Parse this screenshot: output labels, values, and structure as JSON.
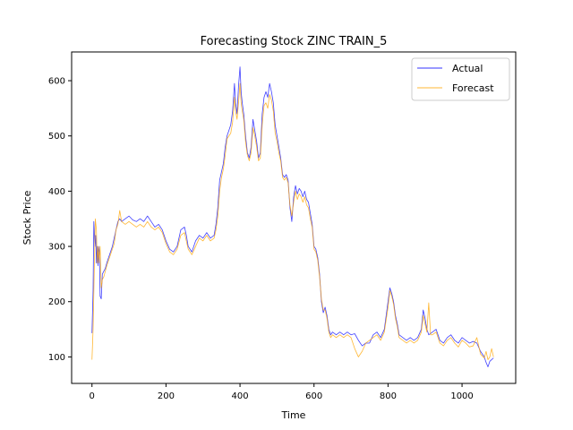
{
  "chart_data": {
    "type": "line",
    "title": "Forecasting Stock ZINC TRAIN_5",
    "xlabel": "Time",
    "ylabel": "Stock Price",
    "xlim": [
      -55,
      1145
    ],
    "ylim": [
      52,
      652
    ],
    "xticks": [
      0,
      200,
      400,
      600,
      800,
      1000
    ],
    "yticks": [
      100,
      200,
      300,
      400,
      500,
      600
    ],
    "grid": false,
    "legend_position": "top-right",
    "series": [
      {
        "name": "Actual",
        "color": "#0000ff",
        "points": [
          [
            0,
            143
          ],
          [
            3,
            220
          ],
          [
            5,
            345
          ],
          [
            8,
            300
          ],
          [
            10,
            320
          ],
          [
            12,
            270
          ],
          [
            14,
            300
          ],
          [
            16,
            265
          ],
          [
            18,
            300
          ],
          [
            20,
            290
          ],
          [
            22,
            210
          ],
          [
            25,
            205
          ],
          [
            28,
            250
          ],
          [
            32,
            255
          ],
          [
            36,
            260
          ],
          [
            40,
            270
          ],
          [
            45,
            280
          ],
          [
            50,
            290
          ],
          [
            55,
            300
          ],
          [
            60,
            315
          ],
          [
            65,
            330
          ],
          [
            70,
            345
          ],
          [
            75,
            350
          ],
          [
            80,
            345
          ],
          [
            90,
            350
          ],
          [
            100,
            355
          ],
          [
            110,
            348
          ],
          [
            120,
            345
          ],
          [
            130,
            350
          ],
          [
            140,
            345
          ],
          [
            150,
            355
          ],
          [
            160,
            345
          ],
          [
            170,
            335
          ],
          [
            180,
            340
          ],
          [
            190,
            330
          ],
          [
            200,
            310
          ],
          [
            210,
            295
          ],
          [
            220,
            290
          ],
          [
            230,
            300
          ],
          [
            240,
            330
          ],
          [
            250,
            335
          ],
          [
            255,
            320
          ],
          [
            260,
            300
          ],
          [
            270,
            290
          ],
          [
            280,
            310
          ],
          [
            290,
            320
          ],
          [
            300,
            315
          ],
          [
            310,
            325
          ],
          [
            320,
            315
          ],
          [
            330,
            320
          ],
          [
            335,
            340
          ],
          [
            340,
            370
          ],
          [
            345,
            420
          ],
          [
            350,
            435
          ],
          [
            355,
            450
          ],
          [
            360,
            480
          ],
          [
            365,
            500
          ],
          [
            370,
            510
          ],
          [
            375,
            520
          ],
          [
            380,
            545
          ],
          [
            385,
            595
          ],
          [
            388,
            560
          ],
          [
            392,
            540
          ],
          [
            396,
            590
          ],
          [
            400,
            625
          ],
          [
            403,
            580
          ],
          [
            406,
            560
          ],
          [
            410,
            540
          ],
          [
            415,
            500
          ],
          [
            420,
            470
          ],
          [
            425,
            460
          ],
          [
            430,
            480
          ],
          [
            435,
            530
          ],
          [
            440,
            510
          ],
          [
            445,
            490
          ],
          [
            450,
            460
          ],
          [
            455,
            470
          ],
          [
            460,
            540
          ],
          [
            465,
            570
          ],
          [
            470,
            580
          ],
          [
            475,
            570
          ],
          [
            480,
            595
          ],
          [
            485,
            580
          ],
          [
            490,
            560
          ],
          [
            495,
            520
          ],
          [
            500,
            500
          ],
          [
            505,
            480
          ],
          [
            510,
            460
          ],
          [
            515,
            430
          ],
          [
            520,
            425
          ],
          [
            525,
            430
          ],
          [
            530,
            420
          ],
          [
            535,
            370
          ],
          [
            540,
            345
          ],
          [
            545,
            390
          ],
          [
            550,
            410
          ],
          [
            555,
            395
          ],
          [
            560,
            405
          ],
          [
            565,
            400
          ],
          [
            570,
            390
          ],
          [
            575,
            400
          ],
          [
            580,
            385
          ],
          [
            585,
            380
          ],
          [
            590,
            360
          ],
          [
            595,
            340
          ],
          [
            600,
            300
          ],
          [
            605,
            295
          ],
          [
            610,
            280
          ],
          [
            615,
            250
          ],
          [
            620,
            200
          ],
          [
            625,
            180
          ],
          [
            630,
            190
          ],
          [
            635,
            175
          ],
          [
            640,
            150
          ],
          [
            645,
            140
          ],
          [
            650,
            145
          ],
          [
            660,
            140
          ],
          [
            670,
            145
          ],
          [
            680,
            140
          ],
          [
            690,
            145
          ],
          [
            700,
            140
          ],
          [
            710,
            142
          ],
          [
            720,
            130
          ],
          [
            730,
            120
          ],
          [
            740,
            125
          ],
          [
            750,
            125
          ],
          [
            760,
            140
          ],
          [
            770,
            145
          ],
          [
            780,
            135
          ],
          [
            790,
            150
          ],
          [
            800,
            200
          ],
          [
            805,
            225
          ],
          [
            810,
            215
          ],
          [
            815,
            200
          ],
          [
            820,
            175
          ],
          [
            825,
            160
          ],
          [
            830,
            140
          ],
          [
            840,
            135
          ],
          [
            850,
            130
          ],
          [
            860,
            135
          ],
          [
            870,
            130
          ],
          [
            880,
            135
          ],
          [
            890,
            150
          ],
          [
            895,
            185
          ],
          [
            900,
            170
          ],
          [
            905,
            150
          ],
          [
            910,
            140
          ],
          [
            920,
            145
          ],
          [
            930,
            150
          ],
          [
            940,
            130
          ],
          [
            950,
            125
          ],
          [
            960,
            135
          ],
          [
            970,
            140
          ],
          [
            980,
            130
          ],
          [
            990,
            125
          ],
          [
            1000,
            135
          ],
          [
            1010,
            130
          ],
          [
            1020,
            125
          ],
          [
            1030,
            128
          ],
          [
            1040,
            125
          ],
          [
            1050,
            110
          ],
          [
            1060,
            100
          ],
          [
            1065,
            90
          ],
          [
            1070,
            82
          ],
          [
            1075,
            92
          ],
          [
            1080,
            95
          ],
          [
            1085,
            98
          ]
        ]
      },
      {
        "name": "Forecast",
        "color": "#ffa500",
        "points": [
          [
            0,
            95
          ],
          [
            3,
            150
          ],
          [
            6,
            250
          ],
          [
            9,
            350
          ],
          [
            12,
            330
          ],
          [
            14,
            270
          ],
          [
            17,
            300
          ],
          [
            19,
            270
          ],
          [
            22,
            300
          ],
          [
            25,
            225
          ],
          [
            28,
            240
          ],
          [
            32,
            245
          ],
          [
            36,
            255
          ],
          [
            40,
            265
          ],
          [
            45,
            275
          ],
          [
            50,
            285
          ],
          [
            55,
            295
          ],
          [
            60,
            305
          ],
          [
            65,
            330
          ],
          [
            70,
            340
          ],
          [
            75,
            365
          ],
          [
            80,
            345
          ],
          [
            90,
            340
          ],
          [
            100,
            345
          ],
          [
            110,
            340
          ],
          [
            120,
            335
          ],
          [
            130,
            340
          ],
          [
            140,
            335
          ],
          [
            150,
            345
          ],
          [
            160,
            335
          ],
          [
            170,
            330
          ],
          [
            180,
            335
          ],
          [
            190,
            325
          ],
          [
            200,
            305
          ],
          [
            210,
            290
          ],
          [
            220,
            285
          ],
          [
            230,
            295
          ],
          [
            240,
            320
          ],
          [
            250,
            325
          ],
          [
            255,
            310
          ],
          [
            260,
            295
          ],
          [
            270,
            285
          ],
          [
            280,
            300
          ],
          [
            290,
            315
          ],
          [
            300,
            310
          ],
          [
            310,
            320
          ],
          [
            320,
            310
          ],
          [
            330,
            315
          ],
          [
            335,
            330
          ],
          [
            340,
            355
          ],
          [
            345,
            400
          ],
          [
            350,
            425
          ],
          [
            355,
            440
          ],
          [
            360,
            465
          ],
          [
            365,
            495
          ],
          [
            370,
            500
          ],
          [
            375,
            505
          ],
          [
            380,
            525
          ],
          [
            385,
            570
          ],
          [
            388,
            545
          ],
          [
            392,
            530
          ],
          [
            396,
            560
          ],
          [
            400,
            595
          ],
          [
            403,
            560
          ],
          [
            406,
            545
          ],
          [
            410,
            530
          ],
          [
            415,
            490
          ],
          [
            420,
            465
          ],
          [
            425,
            455
          ],
          [
            430,
            470
          ],
          [
            435,
            515
          ],
          [
            440,
            500
          ],
          [
            445,
            480
          ],
          [
            450,
            455
          ],
          [
            455,
            460
          ],
          [
            460,
            520
          ],
          [
            465,
            555
          ],
          [
            470,
            560
          ],
          [
            475,
            550
          ],
          [
            480,
            575
          ],
          [
            485,
            565
          ],
          [
            490,
            545
          ],
          [
            495,
            505
          ],
          [
            500,
            490
          ],
          [
            505,
            470
          ],
          [
            510,
            455
          ],
          [
            515,
            425
          ],
          [
            520,
            420
          ],
          [
            525,
            425
          ],
          [
            530,
            415
          ],
          [
            535,
            375
          ],
          [
            540,
            355
          ],
          [
            545,
            380
          ],
          [
            550,
            400
          ],
          [
            555,
            385
          ],
          [
            560,
            395
          ],
          [
            565,
            390
          ],
          [
            570,
            380
          ],
          [
            575,
            390
          ],
          [
            580,
            375
          ],
          [
            585,
            370
          ],
          [
            590,
            350
          ],
          [
            595,
            335
          ],
          [
            600,
            295
          ],
          [
            605,
            290
          ],
          [
            610,
            275
          ],
          [
            615,
            245
          ],
          [
            620,
            205
          ],
          [
            625,
            185
          ],
          [
            630,
            185
          ],
          [
            635,
            170
          ],
          [
            640,
            145
          ],
          [
            645,
            135
          ],
          [
            650,
            140
          ],
          [
            660,
            135
          ],
          [
            670,
            140
          ],
          [
            680,
            135
          ],
          [
            690,
            140
          ],
          [
            700,
            135
          ],
          [
            710,
            115
          ],
          [
            720,
            100
          ],
          [
            730,
            110
          ],
          [
            740,
            125
          ],
          [
            750,
            130
          ],
          [
            760,
            135
          ],
          [
            770,
            140
          ],
          [
            780,
            130
          ],
          [
            790,
            145
          ],
          [
            800,
            190
          ],
          [
            805,
            220
          ],
          [
            810,
            210
          ],
          [
            815,
            195
          ],
          [
            820,
            170
          ],
          [
            825,
            155
          ],
          [
            830,
            135
          ],
          [
            840,
            130
          ],
          [
            850,
            125
          ],
          [
            860,
            130
          ],
          [
            870,
            125
          ],
          [
            880,
            130
          ],
          [
            890,
            145
          ],
          [
            895,
            175
          ],
          [
            900,
            160
          ],
          [
            905,
            145
          ],
          [
            910,
            198
          ],
          [
            915,
            140
          ],
          [
            920,
            140
          ],
          [
            930,
            145
          ],
          [
            940,
            125
          ],
          [
            950,
            120
          ],
          [
            960,
            130
          ],
          [
            970,
            135
          ],
          [
            980,
            125
          ],
          [
            990,
            118
          ],
          [
            1000,
            130
          ],
          [
            1010,
            125
          ],
          [
            1020,
            118
          ],
          [
            1030,
            120
          ],
          [
            1040,
            135
          ],
          [
            1050,
            105
          ],
          [
            1060,
            98
          ],
          [
            1065,
            110
          ],
          [
            1070,
            95
          ],
          [
            1075,
            100
          ],
          [
            1080,
            115
          ],
          [
            1085,
            100
          ]
        ]
      }
    ]
  }
}
